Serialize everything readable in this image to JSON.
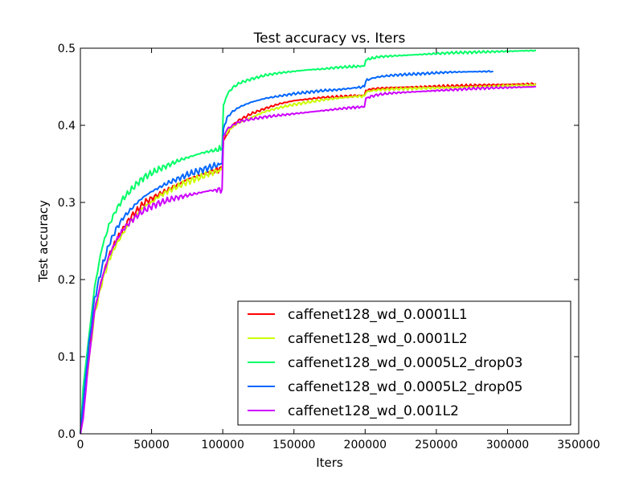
{
  "chart_data": {
    "type": "line",
    "title": "Test accuracy  vs. Iters",
    "xlabel": "Iters",
    "ylabel": "Test accuracy",
    "xlim": [
      0,
      350000
    ],
    "ylim": [
      0,
      0.5
    ],
    "xticks": [
      0,
      50000,
      100000,
      150000,
      200000,
      250000,
      300000,
      350000
    ],
    "xtick_labels": [
      "0",
      "50000",
      "100000",
      "150000",
      "200000",
      "250000",
      "300000",
      "350000"
    ],
    "yticks": [
      0,
      0.1,
      0.2,
      0.3,
      0.4,
      0.5
    ],
    "ytick_labels": [
      "0.0",
      "0.1",
      "0.2",
      "0.3",
      "0.4",
      "0.5"
    ],
    "grid": false,
    "legend_position": "lower-right",
    "series": [
      {
        "name": "caffenet128_wd_0.0001L1",
        "color": "#ff0000",
        "x": [
          0,
          2000,
          5000,
          10000,
          15000,
          20000,
          25000,
          30000,
          35000,
          40000,
          45000,
          50000,
          55000,
          60000,
          65000,
          70000,
          75000,
          80000,
          85000,
          90000,
          95000,
          99500,
          100500,
          105000,
          110000,
          120000,
          130000,
          140000,
          150000,
          160000,
          170000,
          180000,
          190000,
          199500,
          200500,
          205000,
          210000,
          220000,
          240000,
          260000,
          280000,
          300000,
          320000
        ],
        "y": [
          0.0,
          0.03,
          0.09,
          0.16,
          0.2,
          0.23,
          0.25,
          0.265,
          0.28,
          0.29,
          0.3,
          0.305,
          0.31,
          0.315,
          0.32,
          0.325,
          0.33,
          0.333,
          0.336,
          0.339,
          0.342,
          0.344,
          0.38,
          0.395,
          0.405,
          0.415,
          0.422,
          0.428,
          0.432,
          0.434,
          0.436,
          0.437,
          0.438,
          0.439,
          0.445,
          0.447,
          0.448,
          0.449,
          0.45,
          0.451,
          0.452,
          0.453,
          0.454
        ]
      },
      {
        "name": "caffenet128_wd_0.0001L2",
        "color": "#ccff00",
        "x": [
          0,
          2000,
          5000,
          10000,
          15000,
          20000,
          25000,
          30000,
          35000,
          40000,
          45000,
          50000,
          55000,
          60000,
          65000,
          70000,
          75000,
          80000,
          85000,
          90000,
          95000,
          99500,
          100500,
          105000,
          110000,
          120000,
          130000,
          140000,
          150000,
          160000,
          170000,
          180000,
          190000,
          199500,
          200500,
          205000,
          210000,
          220000,
          240000,
          260000,
          280000,
          300000,
          320000
        ],
        "y": [
          0.0,
          0.03,
          0.08,
          0.155,
          0.195,
          0.225,
          0.245,
          0.26,
          0.275,
          0.285,
          0.295,
          0.3,
          0.308,
          0.313,
          0.318,
          0.322,
          0.327,
          0.33,
          0.333,
          0.337,
          0.34,
          0.342,
          0.385,
          0.395,
          0.402,
          0.41,
          0.418,
          0.423,
          0.427,
          0.43,
          0.433,
          0.435,
          0.437,
          0.438,
          0.443,
          0.445,
          0.446,
          0.447,
          0.448,
          0.449,
          0.45,
          0.451,
          0.452
        ]
      },
      {
        "name": "caffenet128_wd_0.0005L2_drop03",
        "color": "#00ff66",
        "x": [
          0,
          2000,
          5000,
          10000,
          15000,
          20000,
          25000,
          30000,
          35000,
          40000,
          45000,
          50000,
          55000,
          60000,
          65000,
          70000,
          75000,
          80000,
          85000,
          90000,
          95000,
          99500,
          100500,
          103000,
          107000,
          112000,
          120000,
          130000,
          140000,
          150000,
          160000,
          170000,
          180000,
          190000,
          199500,
          200500,
          205000,
          210000,
          220000,
          240000,
          260000,
          280000,
          300000,
          320000
        ],
        "y": [
          0.0,
          0.06,
          0.11,
          0.19,
          0.24,
          0.27,
          0.29,
          0.305,
          0.315,
          0.325,
          0.333,
          0.338,
          0.343,
          0.347,
          0.351,
          0.355,
          0.358,
          0.361,
          0.364,
          0.366,
          0.368,
          0.37,
          0.425,
          0.44,
          0.449,
          0.455,
          0.46,
          0.465,
          0.468,
          0.47,
          0.472,
          0.473,
          0.475,
          0.476,
          0.477,
          0.485,
          0.487,
          0.489,
          0.49,
          0.492,
          0.494,
          0.495,
          0.496,
          0.497
        ]
      },
      {
        "name": "caffenet128_wd_0.0005L2_drop05",
        "color": "#0066ff",
        "x": [
          0,
          2000,
          5000,
          10000,
          15000,
          20000,
          25000,
          30000,
          35000,
          40000,
          45000,
          50000,
          55000,
          60000,
          65000,
          70000,
          75000,
          80000,
          85000,
          90000,
          95000,
          99500,
          100500,
          103000,
          107000,
          112000,
          120000,
          130000,
          140000,
          150000,
          160000,
          170000,
          180000,
          190000,
          199500,
          200500,
          205000,
          210000,
          220000,
          240000,
          260000,
          290000
        ],
        "y": [
          0.0,
          0.04,
          0.1,
          0.175,
          0.215,
          0.245,
          0.265,
          0.28,
          0.29,
          0.3,
          0.308,
          0.314,
          0.319,
          0.324,
          0.328,
          0.332,
          0.336,
          0.339,
          0.342,
          0.345,
          0.348,
          0.35,
          0.395,
          0.41,
          0.418,
          0.424,
          0.43,
          0.435,
          0.438,
          0.441,
          0.443,
          0.445,
          0.446,
          0.448,
          0.45,
          0.458,
          0.461,
          0.463,
          0.465,
          0.467,
          0.469,
          0.47
        ]
      },
      {
        "name": "caffenet128_wd_0.001L2",
        "color": "#cc00ff",
        "x": [
          0,
          2000,
          5000,
          10000,
          15000,
          20000,
          25000,
          30000,
          35000,
          40000,
          45000,
          50000,
          55000,
          60000,
          65000,
          70000,
          75000,
          80000,
          85000,
          90000,
          95000,
          99500,
          100500,
          103000,
          107000,
          112000,
          120000,
          130000,
          140000,
          150000,
          160000,
          170000,
          180000,
          190000,
          199500,
          200500,
          205000,
          210000,
          220000,
          240000,
          260000,
          280000,
          300000,
          320000
        ],
        "y": [
          0.0,
          0.02,
          0.08,
          0.16,
          0.2,
          0.23,
          0.25,
          0.265,
          0.275,
          0.283,
          0.29,
          0.295,
          0.299,
          0.302,
          0.305,
          0.307,
          0.309,
          0.311,
          0.313,
          0.315,
          0.316,
          0.317,
          0.385,
          0.395,
          0.4,
          0.405,
          0.408,
          0.411,
          0.413,
          0.415,
          0.417,
          0.419,
          0.421,
          0.423,
          0.424,
          0.435,
          0.438,
          0.44,
          0.442,
          0.444,
          0.446,
          0.448,
          0.449,
          0.45
        ]
      }
    ]
  }
}
